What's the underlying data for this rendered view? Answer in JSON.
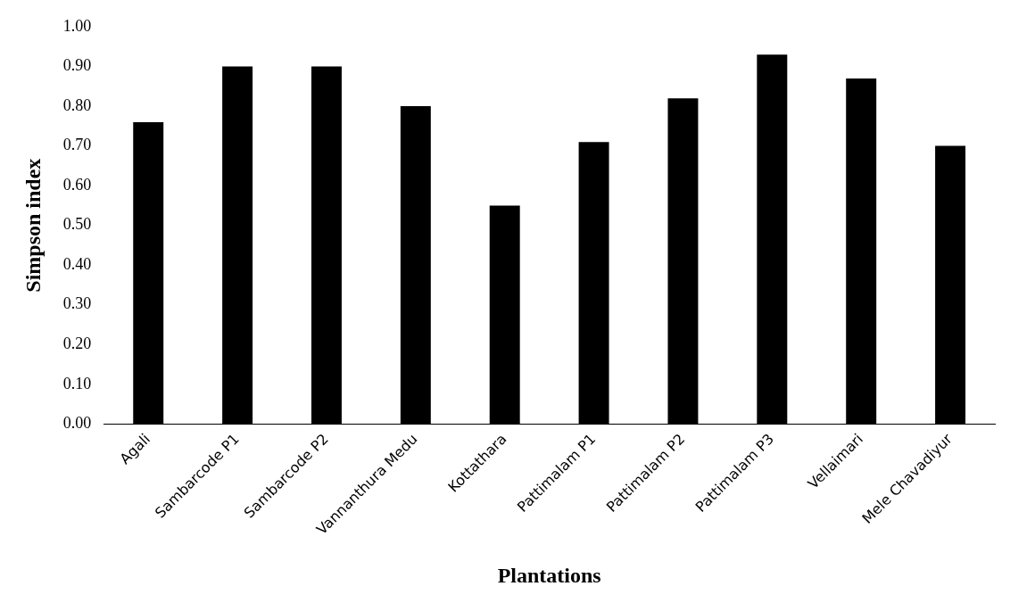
{
  "chart_data": {
    "type": "bar",
    "xlabel": "Plantations",
    "ylabel": "Simpson index",
    "categories": [
      "Agali",
      "Sambarcode P1",
      "Sambarcode P2",
      "Vannanthura Medu",
      "Kottathara",
      "Pattimalam P1",
      "Pattimalam P2",
      "Pattimalam P3",
      "Vellaimari",
      "Mele Chavadiyur"
    ],
    "values": [
      0.76,
      0.9,
      0.9,
      0.8,
      0.55,
      0.71,
      0.82,
      0.93,
      0.87,
      0.7
    ],
    "color": "#000000",
    "ylim": [
      0,
      1
    ],
    "yticks": [
      {
        "value": 0,
        "label": "0.00"
      },
      {
        "value": 0.1,
        "label": "0.10"
      },
      {
        "value": 0.2,
        "label": "0.20"
      },
      {
        "value": 0.3,
        "label": "0.30"
      },
      {
        "value": 0.4,
        "label": "0.40"
      },
      {
        "value": 0.5,
        "label": "0.50"
      },
      {
        "value": 0.6,
        "label": "0.60"
      },
      {
        "value": 0.7,
        "label": "0.70"
      },
      {
        "value": 0.8,
        "label": "0.80"
      },
      {
        "value": 0.9,
        "label": "0.90"
      },
      {
        "value": 1,
        "label": "1.00"
      }
    ],
    "grid": false,
    "legend": false
  }
}
